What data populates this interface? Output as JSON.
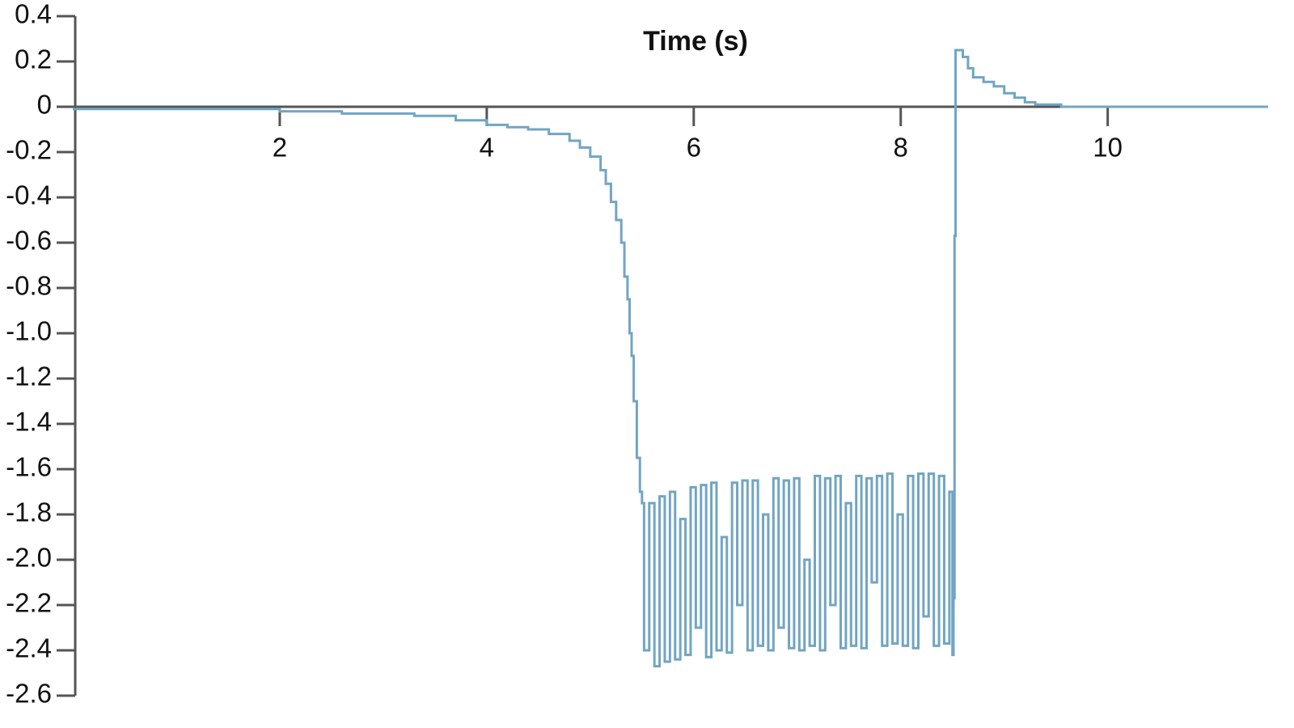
{
  "chart_data": {
    "type": "line",
    "title": "Time (s)",
    "step": true,
    "color": "#72a5c2",
    "xlim": [
      0,
      11.55
    ],
    "ylim": [
      -2.6,
      0.4
    ],
    "xticks": [
      2,
      4,
      6,
      8,
      10
    ],
    "yticks": [
      0.4,
      0.2,
      0,
      -0.2,
      -0.4,
      -0.6,
      -0.8,
      {
        "value": -1,
        "label": "-1.0"
      },
      -1.2,
      -1.4,
      -1.6,
      -1.8,
      {
        "value": -2,
        "label": "-2.0"
      },
      -2.2,
      -2.4,
      -2.6
    ],
    "x": [
      0,
      2.0,
      2.6,
      3.3,
      3.7,
      4.0,
      4.2,
      4.4,
      4.6,
      4.8,
      4.9,
      5.0,
      5.1,
      5.15,
      5.2,
      5.25,
      5.3,
      5.33,
      5.36,
      5.38,
      5.4,
      5.42,
      5.45,
      5.48,
      5.5,
      5.52,
      5.57,
      5.62,
      5.67,
      5.72,
      5.77,
      5.82,
      5.87,
      5.92,
      5.97,
      6.02,
      6.07,
      6.12,
      6.17,
      6.22,
      6.27,
      6.32,
      6.37,
      6.42,
      6.47,
      6.52,
      6.57,
      6.62,
      6.67,
      6.72,
      6.77,
      6.82,
      6.87,
      6.92,
      6.97,
      7.02,
      7.07,
      7.12,
      7.17,
      7.22,
      7.27,
      7.32,
      7.37,
      7.42,
      7.47,
      7.52,
      7.57,
      7.62,
      7.67,
      7.72,
      7.77,
      7.82,
      7.87,
      7.92,
      7.97,
      8.02,
      8.07,
      8.12,
      8.17,
      8.22,
      8.27,
      8.32,
      8.37,
      8.42,
      8.47,
      8.5,
      8.51,
      8.52,
      8.53,
      8.6,
      8.65,
      8.7,
      8.8,
      8.9,
      9.0,
      9.1,
      9.2,
      9.3,
      9.55,
      11.55
    ],
    "values": [
      -0.01,
      -0.02,
      -0.03,
      -0.04,
      -0.06,
      -0.08,
      -0.09,
      -0.1,
      -0.12,
      -0.15,
      -0.18,
      -0.22,
      -0.28,
      -0.34,
      -0.42,
      -0.5,
      -0.6,
      -0.75,
      -0.85,
      -1.0,
      -1.1,
      -1.3,
      -1.55,
      -1.7,
      -1.75,
      -2.4,
      -1.75,
      -2.47,
      -1.72,
      -2.45,
      -1.7,
      -2.44,
      -1.82,
      -2.42,
      -1.68,
      -2.3,
      -1.67,
      -2.43,
      -1.66,
      -2.4,
      -1.9,
      -2.41,
      -1.66,
      -2.2,
      -1.65,
      -2.4,
      -1.65,
      -2.38,
      -1.8,
      -2.4,
      -1.64,
      -2.3,
      -1.65,
      -2.39,
      -1.64,
      -2.4,
      -2.0,
      -2.38,
      -1.63,
      -2.4,
      -1.64,
      -2.2,
      -1.63,
      -2.39,
      -1.75,
      -2.38,
      -1.63,
      -2.39,
      -1.64,
      -2.1,
      -1.63,
      -2.38,
      -1.62,
      -2.37,
      -1.8,
      -2.38,
      -1.63,
      -2.39,
      -1.62,
      -2.25,
      -1.62,
      -2.38,
      -1.63,
      -2.37,
      -1.7,
      -2.42,
      -2.17,
      -0.57,
      0.25,
      0.22,
      0.17,
      0.13,
      0.11,
      0.09,
      0.06,
      0.04,
      0.02,
      0.01,
      0,
      0
    ]
  }
}
